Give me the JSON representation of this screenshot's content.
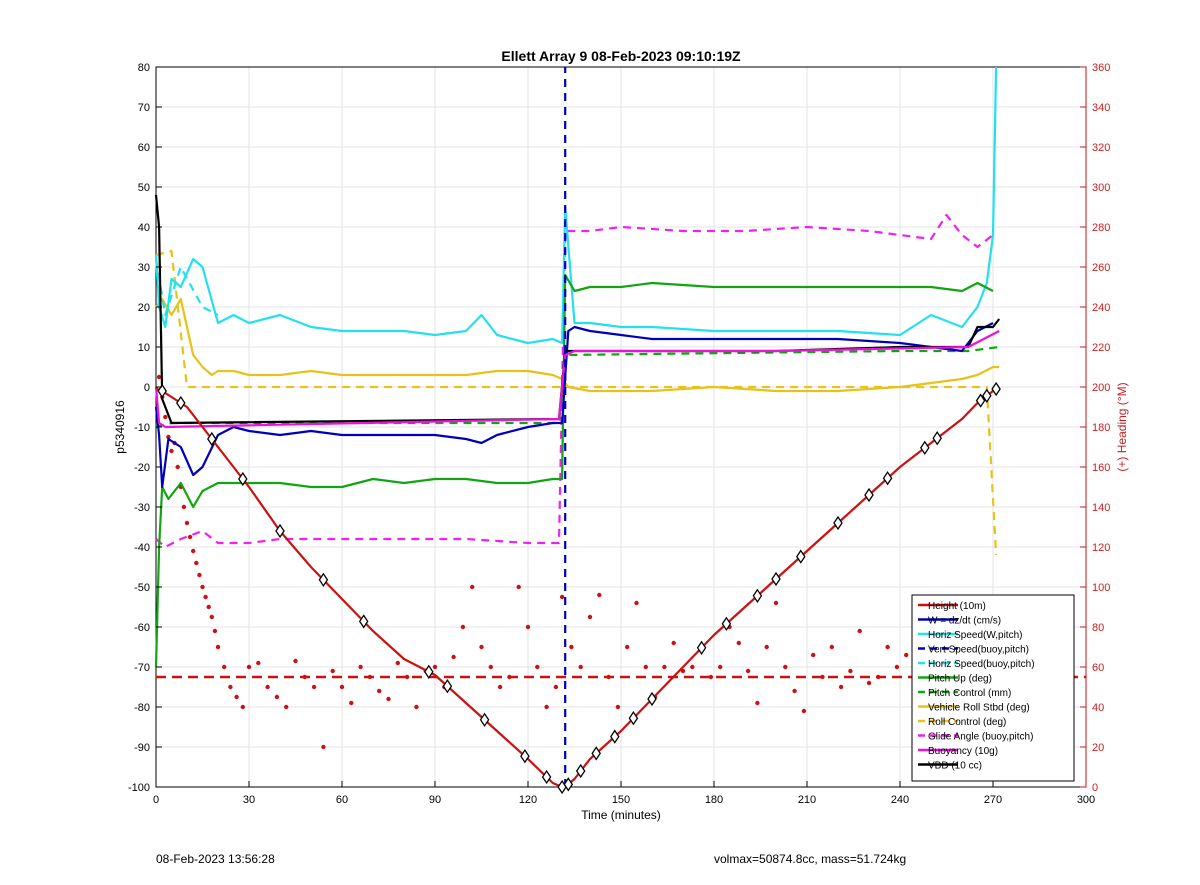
{
  "footer": {
    "left": "08-Feb-2023 13:56:28",
    "right": "volmax=50874.8cc, mass=51.724kg"
  },
  "chart_data": {
    "type": "line",
    "title": "Ellett Array 9 08-Feb-2023 09:10:19Z",
    "xlabel": "Time (minutes)",
    "ylabel": "p5340916",
    "y2label": "(+) Heading (°M)",
    "xlim": [
      0,
      300
    ],
    "ylim": [
      -100,
      80
    ],
    "y2lim": [
      0,
      360
    ],
    "xticks": [
      0,
      30,
      60,
      90,
      120,
      150,
      180,
      210,
      240,
      270,
      300
    ],
    "yticks": [
      -100,
      -90,
      -80,
      -70,
      -60,
      -50,
      -40,
      -30,
      -20,
      -10,
      0,
      10,
      20,
      30,
      40,
      50,
      60,
      70,
      80
    ],
    "y2ticks": [
      0,
      20,
      40,
      60,
      80,
      100,
      120,
      140,
      160,
      180,
      200,
      220,
      240,
      260,
      280,
      300,
      320,
      340,
      360
    ],
    "grid": true,
    "legend_position": "bottom-right",
    "apogee_line_x": 132,
    "heading_reference_y2": 55,
    "colors": {
      "height": "#cc1111",
      "w": "#0000bb",
      "horiz_speed": "#22e0ee",
      "pitch": "#11a611",
      "roll": "#e6c21a",
      "glide": "#ee22ee",
      "buoyancy": "#ee11dd",
      "vbd": "#000000",
      "heading": "#cc1111",
      "right_axis": "#cc1111"
    },
    "series": [
      {
        "name": "Height (10m)",
        "axis": "left",
        "style": "solid",
        "color_key": "height",
        "x": [
          0,
          1,
          2,
          10,
          20,
          30,
          40,
          50,
          60,
          70,
          80,
          90,
          100,
          110,
          120,
          128,
          131,
          132,
          135,
          140,
          150,
          160,
          170,
          180,
          190,
          200,
          210,
          220,
          230,
          240,
          250,
          260,
          265,
          270,
          272
        ],
        "y": [
          0,
          -1,
          -1,
          -5,
          -15,
          -25,
          -36,
          -45,
          -53,
          -61,
          -68,
          -72,
          -79,
          -86,
          -93,
          -99,
          -100,
          -100,
          -98,
          -93,
          -86,
          -78,
          -70,
          -62,
          -55,
          -48,
          -41,
          -34,
          -27,
          -20,
          -14,
          -8,
          -4,
          -1,
          0
        ]
      },
      {
        "name": "W = dz/dt (cm/s)",
        "axis": "left",
        "style": "solid",
        "color_key": "w",
        "x": [
          0,
          1,
          2,
          4,
          8,
          12,
          15,
          20,
          25,
          30,
          40,
          50,
          60,
          70,
          80,
          90,
          100,
          105,
          110,
          120,
          128,
          131,
          133,
          135,
          140,
          150,
          160,
          180,
          200,
          220,
          240,
          250,
          260,
          265,
          270
        ],
        "y": [
          -5,
          -12,
          -25,
          -13,
          -15,
          -22,
          -20,
          -12,
          -10,
          -11,
          -12,
          -11,
          -12,
          -12,
          -12,
          -12,
          -13,
          -14,
          -12,
          -10,
          -9,
          -9,
          14,
          15,
          14,
          13,
          12,
          12,
          12,
          12,
          11,
          10,
          9,
          14,
          16
        ]
      },
      {
        "name": "Horiz Speed(W,pitch)",
        "axis": "left",
        "style": "solid",
        "color_key": "horiz_speed",
        "x": [
          0,
          1,
          3,
          5,
          8,
          12,
          15,
          20,
          25,
          30,
          40,
          50,
          60,
          70,
          80,
          90,
          100,
          105,
          110,
          120,
          128,
          131,
          132,
          135,
          140,
          150,
          160,
          180,
          200,
          220,
          240,
          250,
          260,
          265,
          268,
          270,
          271
        ],
        "y": [
          33,
          20,
          15,
          27,
          25,
          32,
          30,
          16,
          18,
          16,
          18,
          15,
          14,
          14,
          14,
          13,
          14,
          18,
          13,
          11,
          12,
          11,
          45,
          16,
          16,
          15,
          15,
          14,
          14,
          14,
          13,
          18,
          15,
          20,
          26,
          38,
          80
        ]
      },
      {
        "name": "Vert Speed(buoy,pitch)",
        "axis": "left",
        "style": "dashed",
        "color_key": "w",
        "x": [
          132,
          132
        ],
        "y": [
          -100,
          80
        ]
      },
      {
        "name": "Horiz Speed(buoy,pitch)",
        "axis": "left",
        "style": "dashed",
        "color_key": "horiz_speed",
        "x": [
          0,
          3,
          8,
          15,
          20
        ],
        "y": [
          32,
          18,
          30,
          20,
          18
        ]
      },
      {
        "name": "Pitch Up (deg)",
        "axis": "left",
        "style": "solid",
        "color_key": "pitch",
        "x": [
          0,
          1,
          2,
          4,
          8,
          12,
          15,
          20,
          30,
          40,
          50,
          60,
          70,
          80,
          90,
          100,
          110,
          120,
          128,
          131,
          132,
          135,
          140,
          150,
          160,
          180,
          200,
          220,
          240,
          250,
          260,
          265,
          270
        ],
        "y": [
          -70,
          -40,
          -25,
          -28,
          -24,
          -30,
          -26,
          -24,
          -24,
          -24,
          -25,
          -25,
          -23,
          -24,
          -23,
          -23,
          -24,
          -24,
          -23,
          -23,
          28,
          24,
          25,
          25,
          26,
          25,
          25,
          25,
          25,
          25,
          24,
          26,
          24
        ]
      },
      {
        "name": "Pitch Control (mm)",
        "axis": "left",
        "style": "dashed",
        "color_key": "pitch",
        "x": [
          0,
          5,
          130,
          132,
          240,
          262,
          272
        ],
        "y": [
          -10,
          -9,
          -9,
          8,
          9,
          9,
          10
        ]
      },
      {
        "name": "Vehicle Roll Stbd (deg)",
        "axis": "left",
        "style": "solid",
        "color_key": "roll",
        "x": [
          0,
          2,
          5,
          8,
          12,
          15,
          18,
          20,
          25,
          30,
          40,
          50,
          60,
          80,
          100,
          110,
          120,
          128,
          131,
          133,
          140,
          160,
          180,
          200,
          220,
          240,
          250,
          260,
          265,
          270,
          272
        ],
        "y": [
          20,
          22,
          18,
          22,
          8,
          5,
          3,
          4,
          4,
          3,
          3,
          4,
          3,
          3,
          3,
          4,
          4,
          3,
          2,
          0,
          -1,
          -1,
          0,
          -1,
          -1,
          0,
          1,
          2,
          3,
          5,
          5
        ]
      },
      {
        "name": "Roll Control (deg)",
        "axis": "left",
        "style": "dashed",
        "color_key": "roll",
        "x": [
          0,
          5,
          10,
          130,
          132,
          268,
          271
        ],
        "y": [
          33,
          34,
          0,
          0,
          0,
          0,
          -42
        ]
      },
      {
        "name": "Glide Angle (buoy,pitch)",
        "axis": "left",
        "style": "dashed",
        "color_key": "glide",
        "x": [
          0,
          3,
          8,
          15,
          20,
          30,
          40,
          60,
          80,
          100,
          120,
          130,
          132,
          140,
          150,
          170,
          190,
          210,
          230,
          240,
          250,
          255,
          260,
          265,
          270
        ],
        "y": [
          -38,
          -40,
          -38,
          -36,
          -39,
          -39,
          -38,
          -38,
          -38,
          -38,
          -39,
          -39,
          39,
          39,
          40,
          39,
          39,
          40,
          39,
          38,
          37,
          43,
          38,
          35,
          38
        ]
      },
      {
        "name": "Buoyancy (10g)",
        "axis": "left",
        "style": "solid",
        "color_key": "buoyancy",
        "x": [
          0,
          1,
          3,
          130,
          132,
          135,
          200,
          262,
          272
        ],
        "y": [
          0,
          -9,
          -10,
          -8,
          8,
          9,
          9,
          10,
          14
        ]
      },
      {
        "name": "VBD (10 cc)",
        "axis": "left",
        "style": "solid",
        "color_key": "vbd",
        "x": [
          0,
          1,
          2,
          5,
          130,
          132,
          135,
          200,
          240,
          262,
          265,
          270,
          272
        ],
        "y": [
          48,
          40,
          -3,
          -9,
          -8,
          9,
          9,
          9,
          10,
          10,
          15,
          15,
          17
        ]
      }
    ],
    "heading_points": {
      "axis": "right",
      "color_key": "heading",
      "x": [
        1,
        2,
        3,
        4,
        5,
        6,
        7,
        8,
        9,
        10,
        11,
        12,
        13,
        14,
        15,
        16,
        17,
        18,
        19,
        20,
        22,
        24,
        26,
        28,
        30,
        33,
        36,
        39,
        42,
        45,
        48,
        51,
        54,
        57,
        60,
        63,
        66,
        69,
        72,
        75,
        78,
        81,
        84,
        87,
        90,
        93,
        96,
        99,
        102,
        105,
        108,
        111,
        114,
        117,
        120,
        123,
        126,
        129,
        131,
        134,
        137,
        140,
        143,
        146,
        149,
        152,
        155,
        158,
        161,
        164,
        167,
        170,
        173,
        176,
        179,
        182,
        185,
        188,
        191,
        194,
        197,
        200,
        203,
        206,
        209,
        212,
        215,
        218,
        221,
        224,
        227,
        230,
        233,
        236,
        239,
        242,
        245,
        248,
        251,
        254,
        257,
        260,
        263,
        266,
        269
      ],
      "y": [
        205,
        195,
        185,
        175,
        168,
        172,
        160,
        150,
        140,
        132,
        125,
        118,
        112,
        106,
        100,
        95,
        90,
        85,
        78,
        70,
        60,
        50,
        45,
        40,
        60,
        62,
        50,
        45,
        40,
        63,
        55,
        50,
        20,
        58,
        50,
        42,
        60,
        55,
        48,
        44,
        62,
        55,
        40,
        58,
        60,
        50,
        65,
        80,
        100,
        70,
        60,
        50,
        55,
        100,
        80,
        60,
        40,
        50,
        95,
        70,
        60,
        85,
        96,
        55,
        40,
        70,
        92,
        60,
        45,
        60,
        72,
        58,
        60,
        70,
        55,
        60,
        80,
        72,
        58,
        42,
        70,
        92,
        60,
        48,
        38,
        66,
        55,
        70,
        50,
        58,
        78,
        52,
        55,
        70,
        60,
        66,
        80,
        62,
        50,
        60,
        70,
        75,
        66,
        58,
        62
      ]
    },
    "height_markers_x": [
      2,
      8,
      18,
      28,
      40,
      54,
      67,
      88,
      94,
      106,
      119,
      126,
      131,
      133,
      137,
      142,
      148,
      154,
      160,
      176,
      184,
      194,
      200,
      208,
      220,
      230,
      236,
      248,
      252,
      266,
      268,
      271
    ]
  }
}
